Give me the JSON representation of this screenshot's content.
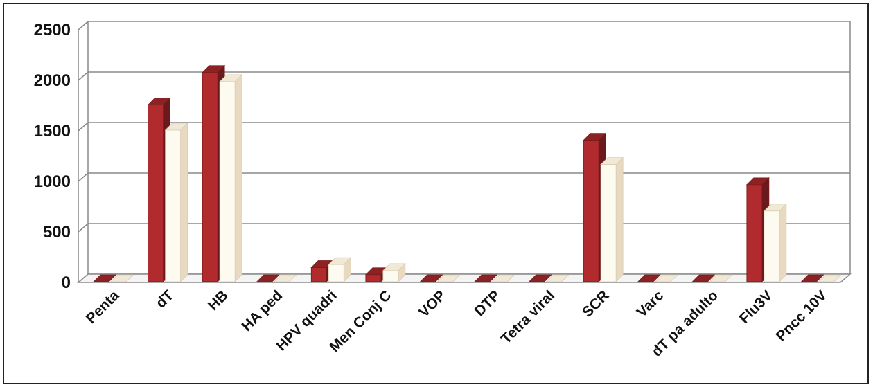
{
  "chart_data": {
    "type": "bar",
    "title": "",
    "xlabel": "",
    "ylabel": "",
    "ylim": [
      0,
      2500
    ],
    "yticks": [
      0,
      500,
      1000,
      1500,
      2000,
      2500
    ],
    "grid": true,
    "legend": "none",
    "categories": [
      "Penta",
      "dT",
      "HB",
      "HA ped",
      "HPV quadri",
      "Men Conj C",
      "VOP",
      "DTP",
      "Tetra viral",
      "SCR",
      "Varc",
      "dT pa adulto",
      "Flu3V",
      "Pncc 10V"
    ],
    "series": [
      {
        "color": "#b02a2e",
        "values": [
          0,
          1750,
          2070,
          0,
          140,
          70,
          0,
          0,
          0,
          1400,
          0,
          0,
          960,
          0
        ]
      },
      {
        "color": "#fdfaf0",
        "values": [
          0,
          1500,
          1980,
          0,
          170,
          110,
          0,
          0,
          0,
          1160,
          0,
          0,
          700,
          0
        ]
      }
    ]
  }
}
